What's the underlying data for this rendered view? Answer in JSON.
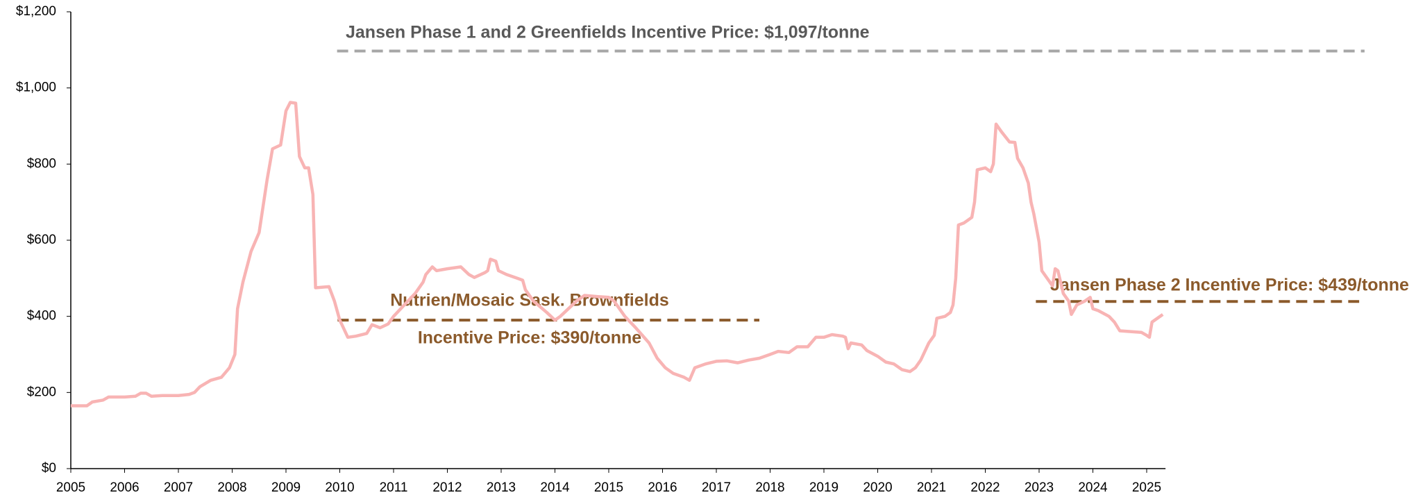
{
  "chart_data": {
    "type": "line",
    "xlim": [
      2005,
      2025.35
    ],
    "xticks": [
      2005,
      2006,
      2007,
      2008,
      2009,
      2010,
      2011,
      2012,
      2013,
      2014,
      2015,
      2016,
      2017,
      2018,
      2019,
      2020,
      2021,
      2022,
      2023,
      2024,
      2025
    ],
    "ylim": [
      0,
      1200
    ],
    "yticks": [
      {
        "value": 0,
        "label": "$0"
      },
      {
        "value": 200,
        "label": "$200"
      },
      {
        "value": 400,
        "label": "$400"
      },
      {
        "value": 600,
        "label": "$600"
      },
      {
        "value": 800,
        "label": "$800"
      },
      {
        "value": 1000,
        "label": "$1,000"
      },
      {
        "value": 1200,
        "label": "$1,200"
      }
    ],
    "series": [
      {
        "color": "#f8b4b4",
        "x": [
          2005.0,
          2005.3,
          2005.4,
          2005.6,
          2005.7,
          2006.0,
          2006.2,
          2006.3,
          2006.4,
          2006.5,
          2006.7,
          2007.0,
          2007.2,
          2007.3,
          2007.4,
          2007.6,
          2007.8,
          2007.95,
          2008.05,
          2008.1,
          2008.2,
          2008.35,
          2008.5,
          2008.65,
          2008.75,
          2008.9,
          2009.0,
          2009.08,
          2009.18,
          2009.25,
          2009.35,
          2009.42,
          2009.5,
          2009.55,
          2009.8,
          2009.9,
          2010.0,
          2010.15,
          2010.3,
          2010.5,
          2010.6,
          2010.75,
          2010.9,
          2011.0,
          2011.2,
          2011.4,
          2011.55,
          2011.6,
          2011.72,
          2011.8,
          2012.0,
          2012.15,
          2012.25,
          2012.4,
          2012.5,
          2012.7,
          2012.75,
          2012.8,
          2012.9,
          2012.95,
          2013.1,
          2013.3,
          2013.4,
          2013.45,
          2013.6,
          2013.85,
          2014.0,
          2014.1,
          2014.25,
          2014.4,
          2014.55,
          2014.8,
          2015.0,
          2015.1,
          2015.3,
          2015.5,
          2015.75,
          2015.9,
          2016.05,
          2016.2,
          2016.4,
          2016.5,
          2016.6,
          2016.8,
          2017.0,
          2017.2,
          2017.4,
          2017.6,
          2017.8,
          2018.0,
          2018.15,
          2018.35,
          2018.5,
          2018.7,
          2018.85,
          2019.0,
          2019.15,
          2019.35,
          2019.4,
          2019.45,
          2019.5,
          2019.7,
          2019.8,
          2020.0,
          2020.15,
          2020.3,
          2020.45,
          2020.6,
          2020.7,
          2020.8,
          2020.95,
          2021.05,
          2021.1,
          2021.25,
          2021.35,
          2021.4,
          2021.45,
          2021.5,
          2021.6,
          2021.75,
          2021.8,
          2021.85,
          2022.0,
          2022.1,
          2022.15,
          2022.2,
          2022.3,
          2022.45,
          2022.55,
          2022.6,
          2022.7,
          2022.8,
          2022.85,
          2022.9,
          2023.0,
          2023.05,
          2023.15,
          2023.25,
          2023.3,
          2023.35,
          2023.45,
          2023.55,
          2023.6,
          2023.7,
          2023.85,
          2023.95,
          2024.0,
          2024.1,
          2024.3,
          2024.4,
          2024.5,
          2024.9,
          2025.0,
          2025.05,
          2025.1,
          2025.2,
          2025.3
        ],
        "values": [
          165,
          165,
          175,
          180,
          188,
          188,
          190,
          198,
          198,
          190,
          192,
          192,
          195,
          200,
          215,
          232,
          240,
          265,
          300,
          420,
          490,
          570,
          620,
          760,
          840,
          850,
          940,
          962,
          960,
          820,
          790,
          790,
          720,
          475,
          478,
          440,
          390,
          345,
          348,
          355,
          378,
          370,
          380,
          400,
          430,
          460,
          490,
          510,
          530,
          520,
          525,
          528,
          530,
          510,
          502,
          515,
          520,
          550,
          545,
          520,
          510,
          500,
          495,
          470,
          440,
          410,
          390,
          400,
          420,
          440,
          455,
          452,
          450,
          440,
          400,
          370,
          330,
          290,
          265,
          250,
          240,
          232,
          265,
          275,
          282,
          283,
          278,
          285,
          290,
          300,
          308,
          305,
          320,
          320,
          345,
          345,
          352,
          348,
          345,
          315,
          330,
          325,
          310,
          295,
          280,
          275,
          260,
          255,
          265,
          285,
          330,
          350,
          395,
          400,
          410,
          430,
          500,
          640,
          645,
          660,
          700,
          785,
          790,
          780,
          800,
          905,
          885,
          858,
          857,
          815,
          790,
          750,
          700,
          670,
          595,
          520,
          500,
          480,
          525,
          520,
          460,
          440,
          405,
          430,
          440,
          450,
          420,
          415,
          400,
          385,
          362,
          358,
          350,
          345,
          385,
          395,
          405
        ]
      }
    ],
    "reference_lines": [
      {
        "label": [
          "Jansen Phase 1 and 2 Greenfields Incentive Price: $1,097/tonne"
        ],
        "value": 1097,
        "x": [
          2009.95,
          2029.05
        ],
        "color": "#a6a6a6",
        "label_color": "#595959"
      },
      {
        "label": [
          "Nutrien/Mosaic Sask. Brownfields",
          "Incentive Price: $390/tonne"
        ],
        "value": 390,
        "x": [
          2009.96,
          2017.8
        ],
        "color": "#8b5a2b",
        "label_color": "#8b5a2b"
      },
      {
        "label": [
          "Jansen Phase 2 Incentive Price: $439/tonne"
        ],
        "value": 439,
        "x": [
          2022.94,
          2028.95
        ],
        "color": "#8b5a2b",
        "label_color": "#8b5a2b"
      }
    ]
  }
}
